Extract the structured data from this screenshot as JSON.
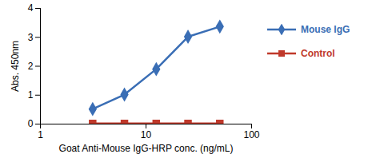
{
  "chart_data": {
    "type": "line",
    "x_label": "Goat Anti-Mouse IgG-HRP conc. (ng/mL)",
    "y_label": "Abs. 450nm",
    "x": [
      3.125,
      6.25,
      12.5,
      25,
      50
    ],
    "series": [
      {
        "name": "Mouse IgG",
        "color": "#3a6eb5",
        "marker": "diamond",
        "values": [
          0.52,
          1.02,
          1.9,
          3.02,
          3.37
        ]
      },
      {
        "name": "Control",
        "color": "#c0392b",
        "marker": "square",
        "values": [
          0.02,
          0.02,
          0.02,
          0.02,
          0.02
        ]
      }
    ],
    "log": "x",
    "xlim": [
      1,
      100
    ],
    "xticks": [
      1,
      10,
      100
    ],
    "ylim": [
      0,
      4
    ],
    "yticks": [
      0,
      1,
      2,
      3,
      4
    ],
    "grid": false,
    "legend": "right"
  }
}
